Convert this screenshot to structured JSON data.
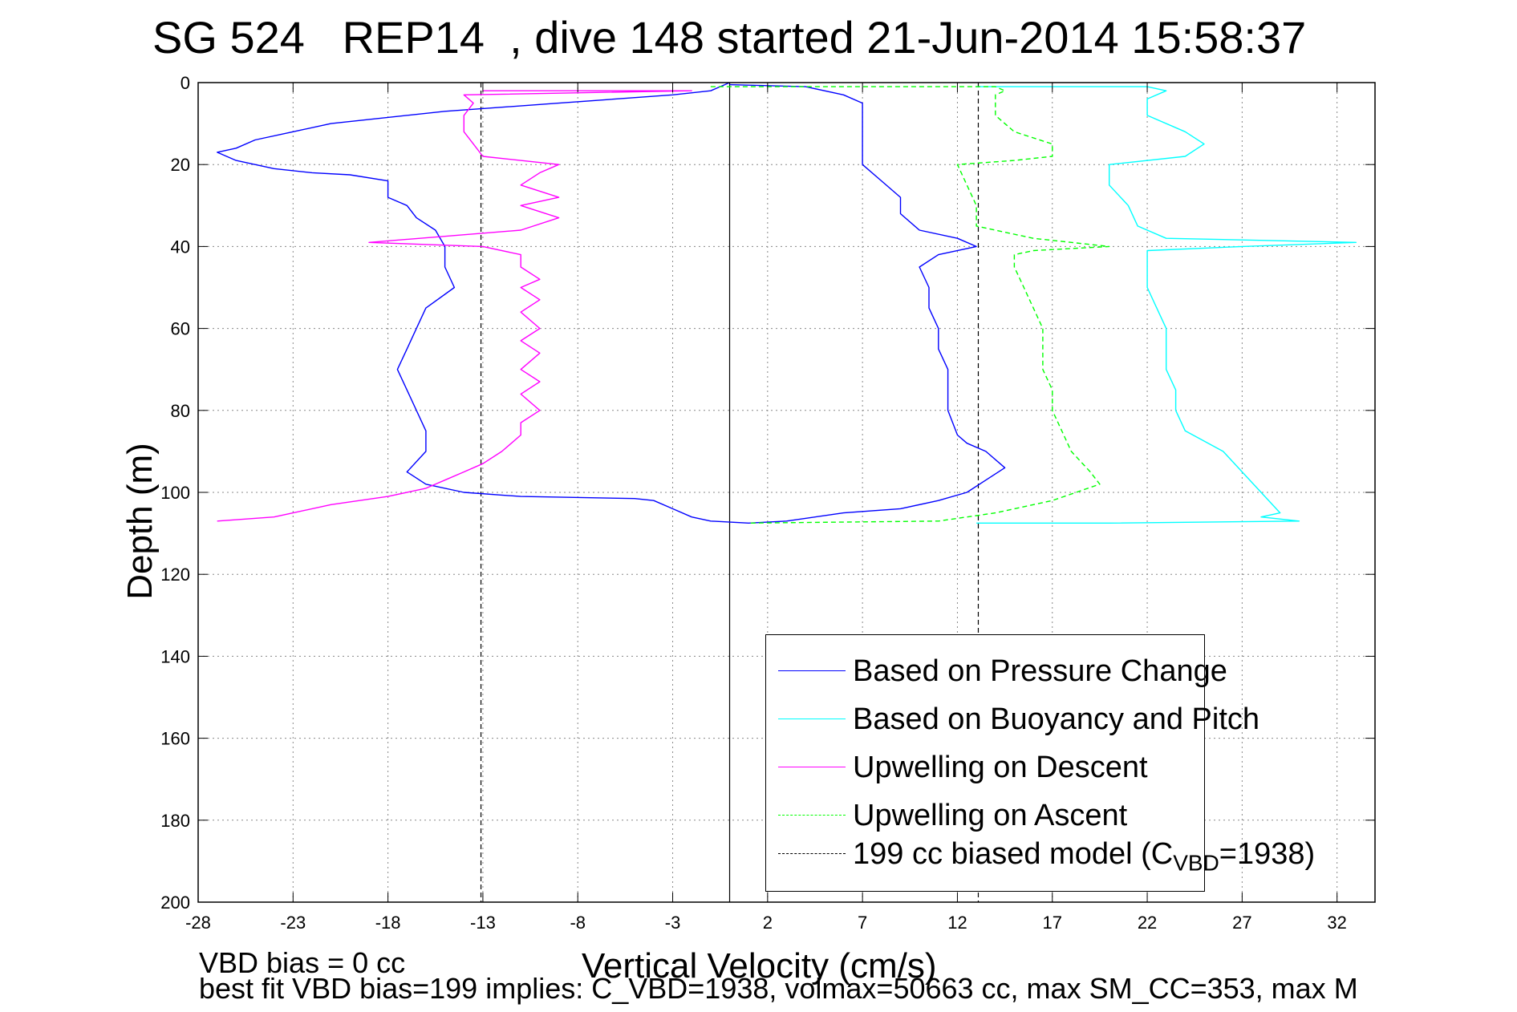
{
  "title": "SG 524   REP14  , dive 148 started 21-Jun-2014 15:58:37",
  "notes": {
    "line1": "VBD bias = 0 cc",
    "line2": "best fit VBD bias=199 implies: C_VBD=1938, volmax=50663 cc, max SM_CC=353, max M"
  },
  "legend": {
    "items": [
      {
        "label": "Based on Pressure Change",
        "color": "#0000ff",
        "style": "solid"
      },
      {
        "label": "Based on Buoyancy and Pitch",
        "color": "#00ffff",
        "style": "solid"
      },
      {
        "label": "Upwelling on Descent",
        "color": "#ff00ff",
        "style": "solid"
      },
      {
        "label": "Upwelling on Ascent",
        "color": "#00ff00",
        "style": "dashed"
      },
      {
        "label_main": "199 cc biased model (C",
        "label_sub": "VBD",
        "label_tail": "=1938)",
        "color": "#000000",
        "style": "dashed"
      }
    ]
  },
  "chart_data": {
    "type": "line",
    "title": "SG 524   REP14  , dive 148 started 21-Jun-2014 15:58:37",
    "xlabel": "Vertical Velocity (cm/s)",
    "ylabel": "Depth (m)",
    "xlim": [
      -28,
      34
    ],
    "ylim": [
      0,
      200
    ],
    "y_reversed": true,
    "xticks": [
      -28,
      -23,
      -18,
      -13,
      -8,
      -3,
      2,
      7,
      12,
      17,
      22,
      27,
      32
    ],
    "yticks": [
      0,
      20,
      40,
      60,
      80,
      100,
      120,
      140,
      160,
      180,
      200
    ],
    "grid": true,
    "legend_position": "bottom-right",
    "zero_line_x": 0,
    "model_lines_x": [
      -13.1,
      13.1
    ],
    "series": [
      {
        "name": "Based on Pressure Change",
        "color": "#0000ff",
        "dashed": false,
        "points": [
          [
            0,
            0
          ],
          [
            -1,
            2
          ],
          [
            -3,
            3
          ],
          [
            -9,
            5
          ],
          [
            -15,
            7
          ],
          [
            -21,
            10
          ],
          [
            -23,
            12
          ],
          [
            -25,
            14
          ],
          [
            -26,
            16
          ],
          [
            -27,
            17
          ],
          [
            -26,
            19
          ],
          [
            -24,
            21
          ],
          [
            -22,
            22
          ],
          [
            -20,
            22.5
          ],
          [
            -18,
            24
          ],
          [
            -18,
            28
          ],
          [
            -17,
            30
          ],
          [
            -16.5,
            33
          ],
          [
            -15.5,
            36
          ],
          [
            -15,
            40
          ],
          [
            -15,
            45
          ],
          [
            -14.5,
            50
          ],
          [
            -16,
            55
          ],
          [
            -16.5,
            60
          ],
          [
            -17,
            65
          ],
          [
            -17.5,
            70
          ],
          [
            -17,
            75
          ],
          [
            -16.5,
            80
          ],
          [
            -16,
            85
          ],
          [
            -16,
            90
          ],
          [
            -17,
            95
          ],
          [
            -16,
            98
          ],
          [
            -14,
            100
          ],
          [
            -11,
            101
          ],
          [
            -5,
            101.5
          ],
          [
            -4,
            102
          ],
          [
            -3,
            104
          ],
          [
            -2,
            106
          ],
          [
            -1,
            107
          ],
          [
            1,
            107.5
          ],
          [
            3,
            107
          ],
          [
            6,
            105
          ],
          [
            9,
            104
          ],
          [
            11,
            102
          ],
          [
            12.5,
            100
          ],
          [
            13.5,
            97
          ],
          [
            14.5,
            94
          ],
          [
            13.5,
            90
          ],
          [
            12.5,
            88
          ],
          [
            12,
            86
          ],
          [
            11.5,
            80
          ],
          [
            11.5,
            75
          ],
          [
            11.5,
            70
          ],
          [
            11,
            65
          ],
          [
            11,
            60
          ],
          [
            10.5,
            55
          ],
          [
            10.5,
            50
          ],
          [
            10,
            45
          ],
          [
            11,
            42
          ],
          [
            13,
            40
          ],
          [
            12,
            38
          ],
          [
            10,
            36
          ],
          [
            9,
            32
          ],
          [
            9,
            28
          ],
          [
            8,
            24
          ],
          [
            7,
            20
          ],
          [
            7,
            15
          ],
          [
            7,
            10
          ],
          [
            7,
            5
          ],
          [
            6,
            3
          ],
          [
            4,
            1
          ],
          [
            0,
            0.5
          ]
        ]
      },
      {
        "name": "Based on Buoyancy and Pitch",
        "color": "#00ffff",
        "dashed": false,
        "points": [
          [
            13,
            1
          ],
          [
            22,
            1
          ],
          [
            23,
            2
          ],
          [
            22,
            4
          ],
          [
            22,
            8
          ],
          [
            24,
            12
          ],
          [
            25,
            15
          ],
          [
            24,
            18
          ],
          [
            20,
            20
          ],
          [
            20,
            25
          ],
          [
            21,
            30
          ],
          [
            21.5,
            35
          ],
          [
            23,
            38
          ],
          [
            33,
            39
          ],
          [
            27,
            40
          ],
          [
            22,
            41
          ],
          [
            22,
            45
          ],
          [
            22,
            50
          ],
          [
            22.5,
            55
          ],
          [
            23,
            60
          ],
          [
            23,
            65
          ],
          [
            23,
            70
          ],
          [
            23.5,
            75
          ],
          [
            23.5,
            80
          ],
          [
            24,
            85
          ],
          [
            26,
            90
          ],
          [
            27,
            95
          ],
          [
            28,
            100
          ],
          [
            29,
            105
          ],
          [
            28,
            106
          ],
          [
            30,
            107
          ],
          [
            20,
            107.5
          ],
          [
            13,
            107.5
          ]
        ]
      },
      {
        "name": "Upwelling on Descent",
        "color": "#ff00ff",
        "dashed": false,
        "points": [
          [
            -13,
            2
          ],
          [
            -2,
            2
          ],
          [
            -14,
            3
          ],
          [
            -13.5,
            5
          ],
          [
            -14,
            8
          ],
          [
            -14,
            12
          ],
          [
            -13.5,
            15
          ],
          [
            -13,
            18
          ],
          [
            -9,
            20
          ],
          [
            -10,
            22
          ],
          [
            -11,
            25
          ],
          [
            -9,
            28
          ],
          [
            -11,
            30
          ],
          [
            -9,
            33
          ],
          [
            -11,
            36
          ],
          [
            -19,
            39
          ],
          [
            -13,
            40
          ],
          [
            -11,
            42
          ],
          [
            -11,
            45
          ],
          [
            -10,
            48
          ],
          [
            -11,
            50
          ],
          [
            -10,
            53
          ],
          [
            -11,
            56
          ],
          [
            -10,
            60
          ],
          [
            -11,
            63
          ],
          [
            -10,
            66
          ],
          [
            -11,
            70
          ],
          [
            -10,
            73
          ],
          [
            -11,
            76
          ],
          [
            -10,
            80
          ],
          [
            -11,
            83
          ],
          [
            -11,
            86
          ],
          [
            -12,
            90
          ],
          [
            -13,
            93
          ],
          [
            -14,
            95
          ],
          [
            -15,
            97
          ],
          [
            -16,
            99
          ],
          [
            -18,
            101
          ],
          [
            -21,
            103
          ],
          [
            -23,
            105
          ],
          [
            -24,
            106
          ],
          [
            -27,
            107
          ]
        ]
      },
      {
        "name": "Upwelling on Ascent",
        "color": "#00ff00",
        "dashed": true,
        "points": [
          [
            -1,
            1
          ],
          [
            14,
            1
          ],
          [
            14.5,
            2
          ],
          [
            14,
            3
          ],
          [
            14,
            5
          ],
          [
            14,
            8
          ],
          [
            15,
            12
          ],
          [
            17,
            15
          ],
          [
            17,
            18
          ],
          [
            15,
            19
          ],
          [
            12,
            20
          ],
          [
            12.5,
            25
          ],
          [
            13,
            30
          ],
          [
            13,
            35
          ],
          [
            16,
            38
          ],
          [
            20,
            40
          ],
          [
            16,
            41
          ],
          [
            15,
            42
          ],
          [
            15,
            45
          ],
          [
            15.5,
            50
          ],
          [
            16,
            55
          ],
          [
            16.5,
            60
          ],
          [
            16.5,
            65
          ],
          [
            16.5,
            70
          ],
          [
            17,
            75
          ],
          [
            17,
            80
          ],
          [
            17.5,
            85
          ],
          [
            18,
            90
          ],
          [
            19,
            95
          ],
          [
            19.5,
            98
          ],
          [
            17,
            102
          ],
          [
            14,
            105
          ],
          [
            11,
            107
          ],
          [
            1,
            107.5
          ]
        ]
      }
    ]
  }
}
